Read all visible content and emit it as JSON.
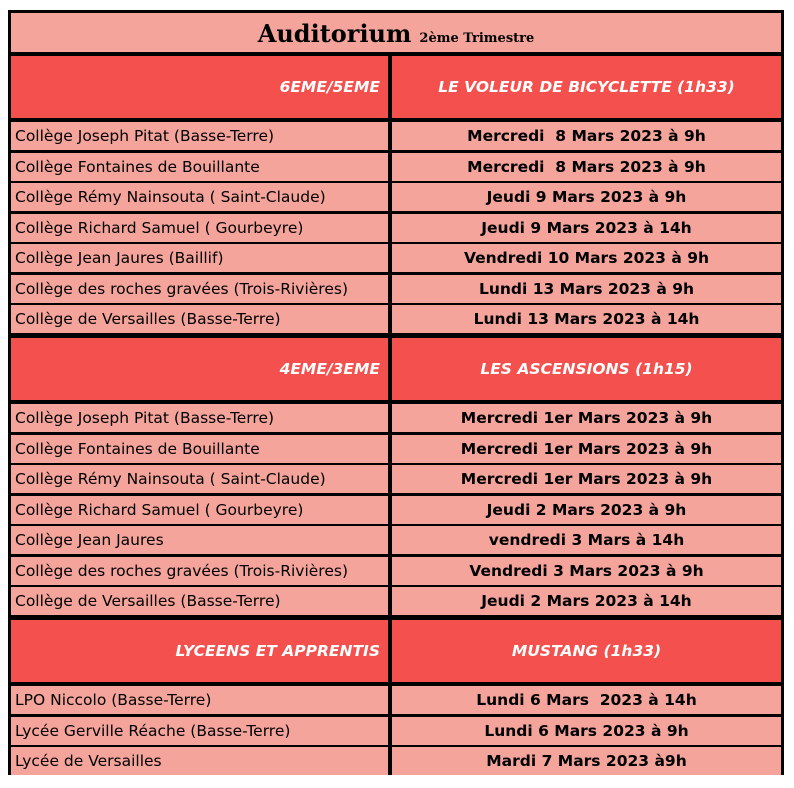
{
  "header": {
    "title": "Auditorium",
    "subtitle": "2ème Trimestre"
  },
  "sections": [
    {
      "level": "6EME/5EME",
      "film": "LE VOLEUR DE BICYCLETTE (1h33)",
      "rows": [
        [
          "Collège Joseph Pitat (Basse-Terre)",
          "Mercredi  8 Mars 2023 à 9h"
        ],
        [
          "Collège Fontaines de Bouillante",
          "Mercredi  8 Mars 2023 à 9h"
        ],
        [
          "Collège Rémy Nainsouta ( Saint-Claude)",
          "Jeudi 9 Mars 2023 à 9h"
        ],
        [
          "Collège Richard Samuel ( Gourbeyre)",
          "Jeudi 9 Mars 2023 à 14h"
        ],
        [
          "Collège Jean Jaures (Baillif)",
          "Vendredi 10 Mars 2023 à 9h"
        ],
        [
          "Collège des roches gravées (Trois-Rivières)",
          "Lundi 13 Mars 2023 à 9h"
        ],
        [
          "Collège de Versailles (Basse-Terre)",
          "Lundi 13 Mars 2023 à 14h"
        ]
      ]
    },
    {
      "level": "4EME/3EME",
      "film": "LES ASCENSIONS (1h15)",
      "rows": [
        [
          "Collège Joseph Pitat (Basse-Terre)",
          "Mercredi 1er Mars 2023 à 9h"
        ],
        [
          "Collège Fontaines de Bouillante",
          "Mercredi 1er Mars 2023 à 9h"
        ],
        [
          "Collège Rémy Nainsouta ( Saint-Claude)",
          "Mercredi 1er Mars 2023 à 9h"
        ],
        [
          "Collège Richard Samuel ( Gourbeyre)",
          "Jeudi 2 Mars 2023 à 9h"
        ],
        [
          "Collège Jean Jaures",
          "vendredi 3 Mars à 14h"
        ],
        [
          "Collège des roches gravées (Trois-Rivières)",
          "Vendredi 3 Mars 2023 à 9h"
        ],
        [
          "Collège de Versailles (Basse-Terre)",
          "Jeudi 2 Mars 2023 à 14h"
        ]
      ]
    },
    {
      "level": "LYCEENS ET APPRENTIS",
      "film": "MUSTANG (1h33)",
      "rows": [
        [
          "LPO Niccolo (Basse-Terre)",
          "Lundi 6 Mars  2023 à 14h"
        ],
        [
          "Lycée Gerville Réache (Basse-Terre)",
          "Lundi 6 Mars 2023 à 9h"
        ],
        [
          "Lycée de Versailles",
          "Mardi 7 Mars 2023 à9h"
        ]
      ]
    }
  ]
}
